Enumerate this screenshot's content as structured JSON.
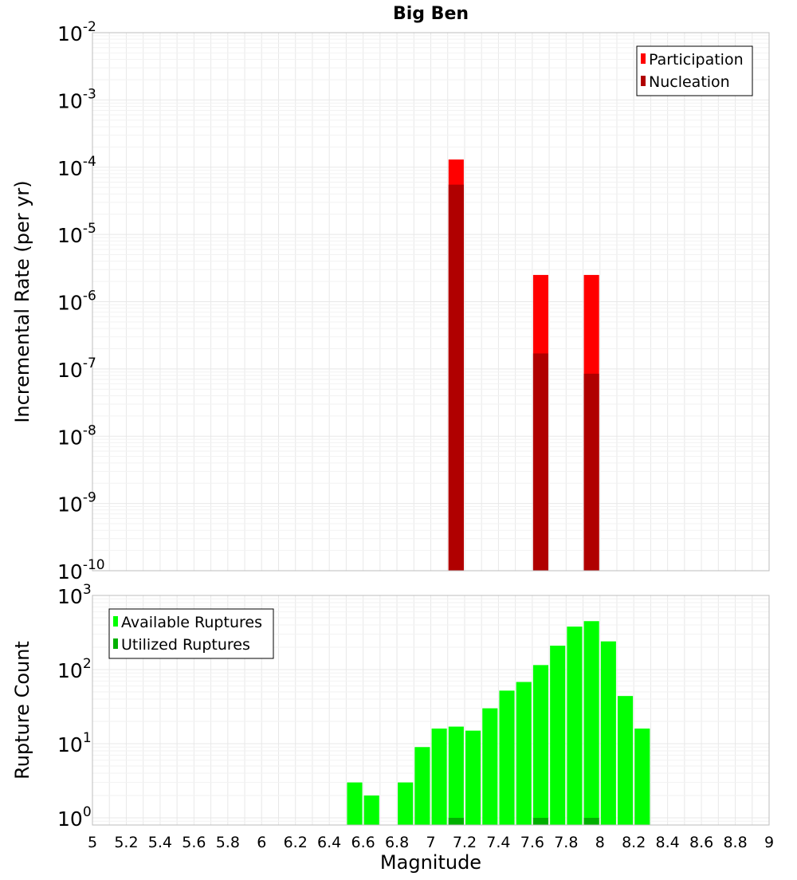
{
  "colors": {
    "participation": "#ff0000",
    "nucleation": "#b00000",
    "available": "#00ff00",
    "utilized": "#00b000",
    "frame": "#bdbdbd",
    "grid": "#e8e8e8",
    "legend_border": "#000000"
  },
  "chart_data": [
    {
      "type": "bar",
      "title": "Big Ben",
      "xlabel": "",
      "ylabel": "Incremental Rate (per yr)",
      "xlim": [
        5,
        9
      ],
      "ylim": [
        1e-10,
        0.01
      ],
      "yscale": "log",
      "grid": true,
      "legend_position": "top-right",
      "bar_width": 0.09,
      "y_ticks": [
        {
          "base": "10",
          "exp": "-10"
        },
        {
          "base": "10",
          "exp": "-9"
        },
        {
          "base": "10",
          "exp": "-8"
        },
        {
          "base": "10",
          "exp": "-7"
        },
        {
          "base": "10",
          "exp": "-6"
        },
        {
          "base": "10",
          "exp": "-5"
        },
        {
          "base": "10",
          "exp": "-4"
        },
        {
          "base": "10",
          "exp": "-3"
        },
        {
          "base": "10",
          "exp": "-2"
        }
      ],
      "series": [
        {
          "name": "Participation",
          "color_key": "participation",
          "x": [
            7.15,
            7.65,
            7.95
          ],
          "values": [
            0.00013,
            2.5e-06,
            2.5e-06
          ]
        },
        {
          "name": "Nucleation",
          "color_key": "nucleation",
          "x": [
            7.15,
            7.65,
            7.95
          ],
          "values": [
            5.5e-05,
            1.7e-07,
            8.5e-08
          ]
        }
      ]
    },
    {
      "type": "bar",
      "title": "",
      "xlabel": "Magnitude",
      "ylabel": "Rupture Count",
      "xlim": [
        5,
        9
      ],
      "ylim": [
        0.8,
        1000
      ],
      "yscale": "log",
      "grid": true,
      "legend_position": "top-left",
      "bar_width": 0.09,
      "x_ticks": [
        "5",
        "5.2",
        "5.4",
        "5.6",
        "5.8",
        "6",
        "6.2",
        "6.4",
        "6.6",
        "6.8",
        "7",
        "7.2",
        "7.4",
        "7.6",
        "7.8",
        "8",
        "8.2",
        "8.4",
        "8.6",
        "8.8",
        "9"
      ],
      "y_ticks": [
        {
          "base": "10",
          "exp": "0"
        },
        {
          "base": "10",
          "exp": "1"
        },
        {
          "base": "10",
          "exp": "2"
        },
        {
          "base": "10",
          "exp": "3"
        }
      ],
      "series": [
        {
          "name": "Available Ruptures",
          "color_key": "available",
          "x": [
            6.55,
            6.65,
            6.85,
            6.95,
            7.05,
            7.15,
            7.25,
            7.35,
            7.45,
            7.55,
            7.65,
            7.75,
            7.85,
            7.95,
            8.05,
            8.15,
            8.25
          ],
          "values": [
            3,
            2,
            3,
            9,
            16,
            17,
            15,
            30,
            52,
            68,
            115,
            210,
            380,
            450,
            240,
            44,
            16
          ]
        },
        {
          "name": "Utilized Ruptures",
          "color_key": "utilized",
          "x": [
            7.15,
            7.65,
            7.95
          ],
          "values": [
            1,
            1,
            1
          ]
        }
      ]
    }
  ]
}
